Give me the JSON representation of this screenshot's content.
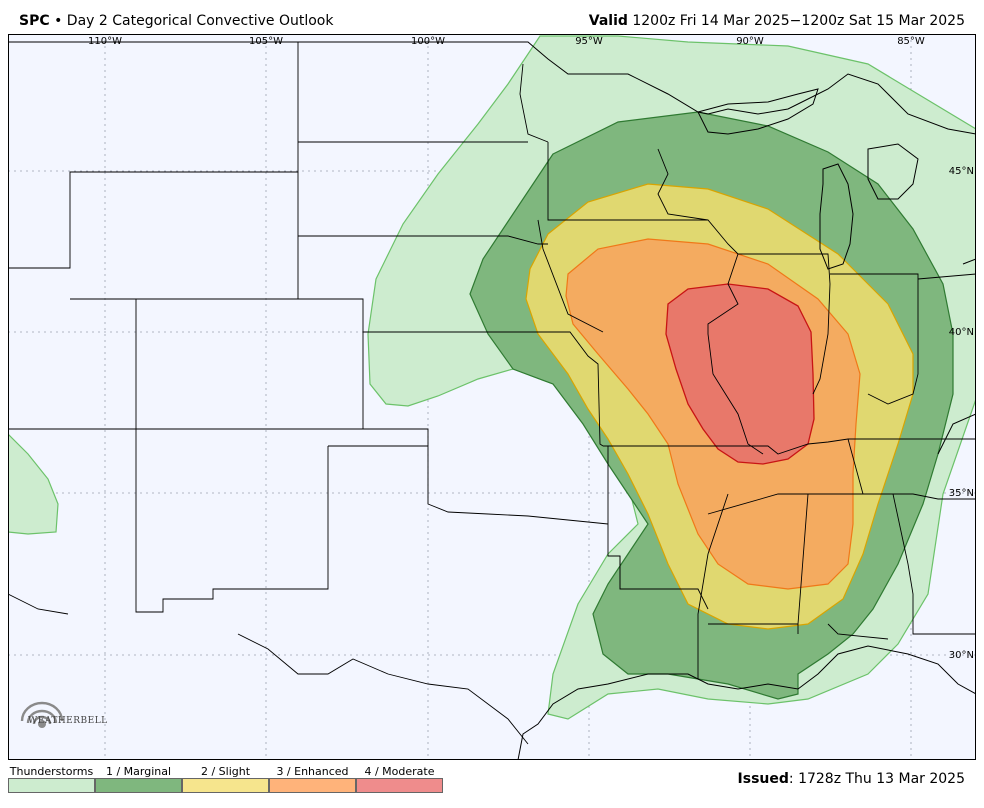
{
  "header": {
    "brand": "SPC",
    "separator": "•",
    "title": "Day 2 Categorical Convective Outlook",
    "valid_label": "Valid",
    "valid_text": "1200z Fri 14 Mar 2025−1200z Sat 15 Mar 2025"
  },
  "map": {
    "longitude_labels": [
      "110°W",
      "105°W",
      "100°W",
      "95°W",
      "90°W",
      "85°W"
    ],
    "latitude_labels": [
      "45°N",
      "40°N",
      "35°N",
      "30°N"
    ]
  },
  "legend": {
    "items": [
      {
        "label": "Thunderstorms",
        "color": "#cdeccf"
      },
      {
        "label": "1 / Marginal",
        "color": "#7fb77e"
      },
      {
        "label": "2 / Slight",
        "color": "#f6e58d"
      },
      {
        "label": "3 / Enhanced",
        "color": "#ffb37a"
      },
      {
        "label": "4 / Moderate",
        "color": "#ef8c8c"
      }
    ]
  },
  "issued": {
    "label": "Issued",
    "text": "1728z Thu 13 Mar 2025"
  },
  "logo": {
    "text": "WEATHERBELL"
  }
}
